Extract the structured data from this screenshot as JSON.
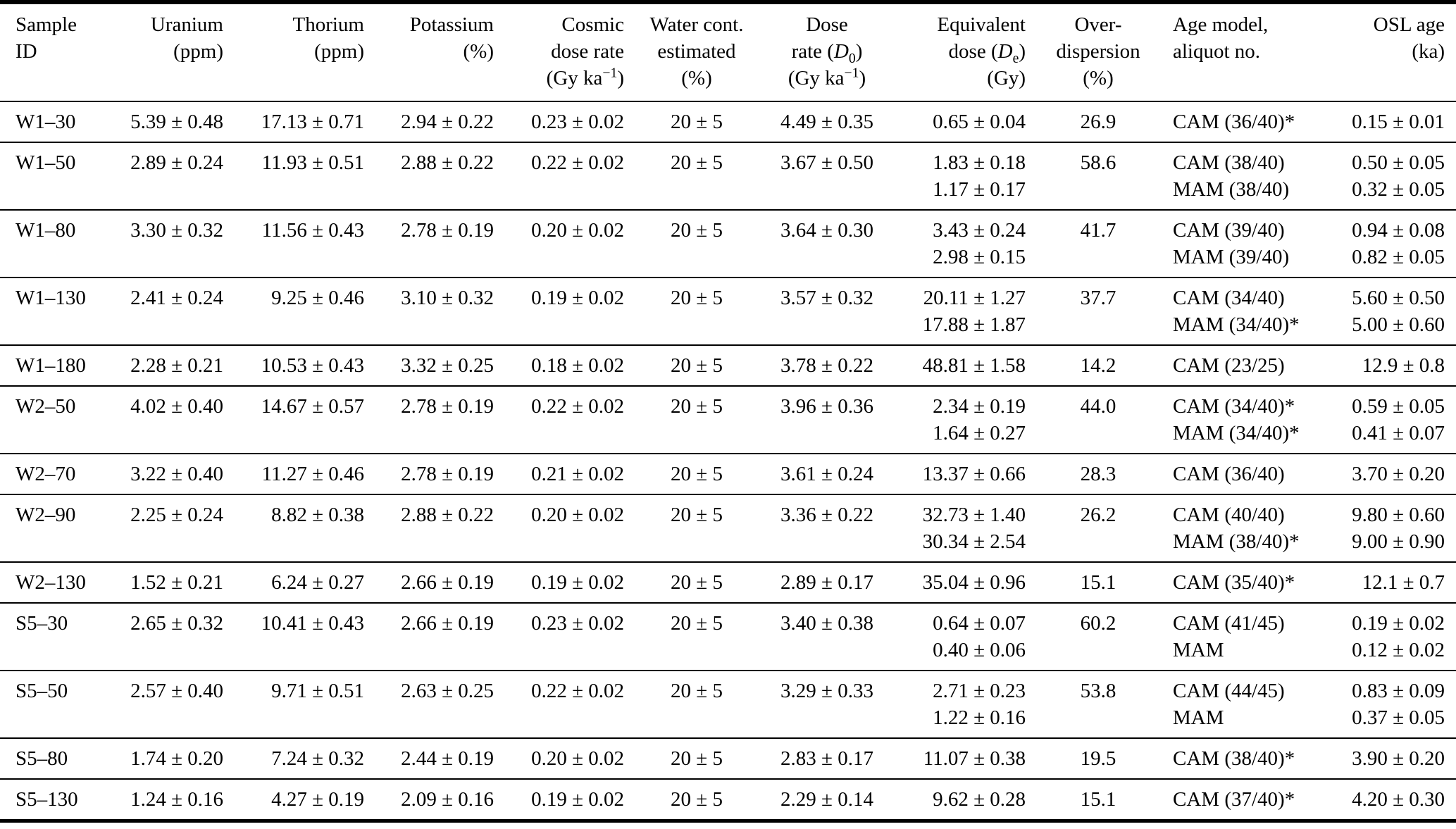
{
  "table": {
    "columns": [
      {
        "name": "sample-id",
        "align": "left",
        "header_lines": [
          "Sample",
          "ID"
        ]
      },
      {
        "name": "uranium",
        "align": "right",
        "header_lines": [
          "Uranium",
          "(ppm)"
        ]
      },
      {
        "name": "thorium",
        "align": "right",
        "header_lines": [
          "Thorium",
          "(ppm)"
        ]
      },
      {
        "name": "potassium",
        "align": "right",
        "header_lines": [
          "Potassium",
          "(%)"
        ]
      },
      {
        "name": "cosmic-dose-rate",
        "align": "right",
        "header_lines": [
          "Cosmic",
          "dose rate",
          "(Gy ka<sup>−1</sup>)"
        ]
      },
      {
        "name": "water-content",
        "align": "center",
        "header_lines": [
          "Water cont.",
          "estimated",
          "(%)"
        ]
      },
      {
        "name": "dose-rate",
        "align": "center",
        "header_lines": [
          "Dose",
          "rate (<i>D</i><sub>0</sub>)",
          "(Gy ka<sup>−1</sup>)"
        ]
      },
      {
        "name": "equivalent-dose",
        "align": "right",
        "header_lines": [
          "Equivalent",
          "dose (<i>D</i><sub>e</sub>)",
          "(Gy)"
        ]
      },
      {
        "name": "overdispersion",
        "align": "center",
        "header_lines": [
          "Over-",
          "dispersion",
          "(%)"
        ]
      },
      {
        "name": "age-model",
        "align": "left",
        "header_lines": [
          "Age model,",
          "aliquot no."
        ]
      },
      {
        "name": "osl-age",
        "align": "right",
        "header_lines": [
          "OSL age",
          "(ka)"
        ]
      }
    ],
    "rows": [
      {
        "cells": [
          [
            "W1–30"
          ],
          [
            "5.39 ± 0.48"
          ],
          [
            "17.13 ± 0.71"
          ],
          [
            "2.94 ± 0.22"
          ],
          [
            "0.23 ± 0.02"
          ],
          [
            "20 ± 5"
          ],
          [
            "4.49 ± 0.35"
          ],
          [
            "0.65 ± 0.04"
          ],
          [
            "26.9"
          ],
          [
            "CAM (36/40)*"
          ],
          [
            "0.15 ± 0.01"
          ]
        ]
      },
      {
        "cells": [
          [
            "W1–50"
          ],
          [
            "2.89 ± 0.24"
          ],
          [
            "11.93 ± 0.51"
          ],
          [
            "2.88 ± 0.22"
          ],
          [
            "0.22 ± 0.02"
          ],
          [
            "20 ± 5"
          ],
          [
            "3.67 ± 0.50"
          ],
          [
            "1.83 ± 0.18",
            "1.17 ± 0.17"
          ],
          [
            "58.6"
          ],
          [
            "CAM (38/40)",
            "MAM (38/40)"
          ],
          [
            "0.50 ± 0.05",
            "0.32 ± 0.05"
          ]
        ]
      },
      {
        "cells": [
          [
            "W1–80"
          ],
          [
            "3.30 ± 0.32"
          ],
          [
            "11.56 ± 0.43"
          ],
          [
            "2.78 ± 0.19"
          ],
          [
            "0.20 ± 0.02"
          ],
          [
            "20 ± 5"
          ],
          [
            "3.64 ± 0.30"
          ],
          [
            "3.43 ± 0.24",
            "2.98 ± 0.15"
          ],
          [
            "41.7"
          ],
          [
            "CAM (39/40)",
            "MAM (39/40)"
          ],
          [
            "0.94 ± 0.08",
            "0.82 ± 0.05"
          ]
        ]
      },
      {
        "cells": [
          [
            "W1–130"
          ],
          [
            "2.41 ± 0.24"
          ],
          [
            "9.25 ± 0.46"
          ],
          [
            "3.10 ± 0.32"
          ],
          [
            "0.19 ± 0.02"
          ],
          [
            "20 ± 5"
          ],
          [
            "3.57 ± 0.32"
          ],
          [
            "20.11 ± 1.27",
            "17.88 ± 1.87"
          ],
          [
            "37.7"
          ],
          [
            "CAM (34/40)",
            "MAM (34/40)*"
          ],
          [
            "5.60 ± 0.50",
            "5.00 ± 0.60"
          ]
        ]
      },
      {
        "cells": [
          [
            "W1–180"
          ],
          [
            "2.28 ± 0.21"
          ],
          [
            "10.53 ± 0.43"
          ],
          [
            "3.32 ± 0.25"
          ],
          [
            "0.18 ± 0.02"
          ],
          [
            "20 ± 5"
          ],
          [
            "3.78 ± 0.22"
          ],
          [
            "48.81 ± 1.58"
          ],
          [
            "14.2"
          ],
          [
            "CAM (23/25)"
          ],
          [
            "12.9 ± 0.8"
          ]
        ]
      },
      {
        "cells": [
          [
            "W2–50"
          ],
          [
            "4.02 ± 0.40"
          ],
          [
            "14.67 ± 0.57"
          ],
          [
            "2.78 ± 0.19"
          ],
          [
            "0.22 ± 0.02"
          ],
          [
            "20 ± 5"
          ],
          [
            "3.96 ± 0.36"
          ],
          [
            "2.34 ± 0.19",
            "1.64 ± 0.27"
          ],
          [
            "44.0"
          ],
          [
            "CAM (34/40)*",
            "MAM (34/40)*"
          ],
          [
            "0.59 ± 0.05",
            "0.41 ± 0.07"
          ]
        ]
      },
      {
        "cells": [
          [
            "W2–70"
          ],
          [
            "3.22 ± 0.40"
          ],
          [
            "11.27 ± 0.46"
          ],
          [
            "2.78 ± 0.19"
          ],
          [
            "0.21 ± 0.02"
          ],
          [
            "20 ± 5"
          ],
          [
            "3.61 ± 0.24"
          ],
          [
            "13.37 ± 0.66"
          ],
          [
            "28.3"
          ],
          [
            "CAM (36/40)"
          ],
          [
            "3.70 ± 0.20"
          ]
        ]
      },
      {
        "cells": [
          [
            "W2–90"
          ],
          [
            "2.25 ± 0.24"
          ],
          [
            "8.82 ± 0.38"
          ],
          [
            "2.88 ± 0.22"
          ],
          [
            "0.20 ± 0.02"
          ],
          [
            "20 ± 5"
          ],
          [
            "3.36 ± 0.22"
          ],
          [
            "32.73 ± 1.40",
            "30.34 ± 2.54"
          ],
          [
            "26.2"
          ],
          [
            "CAM (40/40)",
            "MAM (38/40)*"
          ],
          [
            "9.80 ± 0.60",
            "9.00 ± 0.90"
          ]
        ]
      },
      {
        "cells": [
          [
            "W2–130"
          ],
          [
            "1.52 ± 0.21"
          ],
          [
            "6.24 ± 0.27"
          ],
          [
            "2.66 ± 0.19"
          ],
          [
            "0.19 ± 0.02"
          ],
          [
            "20 ± 5"
          ],
          [
            "2.89 ± 0.17"
          ],
          [
            "35.04 ± 0.96"
          ],
          [
            "15.1"
          ],
          [
            "CAM (35/40)*"
          ],
          [
            "12.1 ± 0.7"
          ]
        ]
      },
      {
        "cells": [
          [
            "S5–30"
          ],
          [
            "2.65 ± 0.32"
          ],
          [
            "10.41 ± 0.43"
          ],
          [
            "2.66 ± 0.19"
          ],
          [
            "0.23 ± 0.02"
          ],
          [
            "20 ± 5"
          ],
          [
            "3.40 ± 0.38"
          ],
          [
            "0.64 ± 0.07",
            "0.40 ± 0.06"
          ],
          [
            "60.2"
          ],
          [
            "CAM (41/45)",
            "MAM"
          ],
          [
            "0.19 ± 0.02",
            "0.12 ± 0.02"
          ]
        ]
      },
      {
        "cells": [
          [
            "S5–50"
          ],
          [
            "2.57 ± 0.40"
          ],
          [
            "9.71 ± 0.51"
          ],
          [
            "2.63 ± 0.25"
          ],
          [
            "0.22 ± 0.02"
          ],
          [
            "20 ± 5"
          ],
          [
            "3.29 ± 0.33"
          ],
          [
            "2.71 ± 0.23",
            "1.22 ± 0.16"
          ],
          [
            "53.8"
          ],
          [
            "CAM (44/45)",
            "MAM"
          ],
          [
            "0.83 ± 0.09",
            "0.37 ± 0.05"
          ]
        ]
      },
      {
        "cells": [
          [
            "S5–80"
          ],
          [
            "1.74 ± 0.20"
          ],
          [
            "7.24 ± 0.32"
          ],
          [
            "2.44 ± 0.19"
          ],
          [
            "0.20 ± 0.02"
          ],
          [
            "20 ± 5"
          ],
          [
            "2.83 ± 0.17"
          ],
          [
            "11.07 ± 0.38"
          ],
          [
            "19.5"
          ],
          [
            "CAM (38/40)*"
          ],
          [
            "3.90 ± 0.20"
          ]
        ]
      },
      {
        "cells": [
          [
            "S5–130"
          ],
          [
            "1.24 ± 0.16"
          ],
          [
            "4.27 ± 0.19"
          ],
          [
            "2.09 ± 0.16"
          ],
          [
            "0.19 ± 0.02"
          ],
          [
            "20 ± 5"
          ],
          [
            "2.29 ± 0.14"
          ],
          [
            "9.62 ± 0.28"
          ],
          [
            "15.1"
          ],
          [
            "CAM (37/40)*"
          ],
          [
            "4.20 ± 0.30"
          ]
        ]
      }
    ]
  }
}
